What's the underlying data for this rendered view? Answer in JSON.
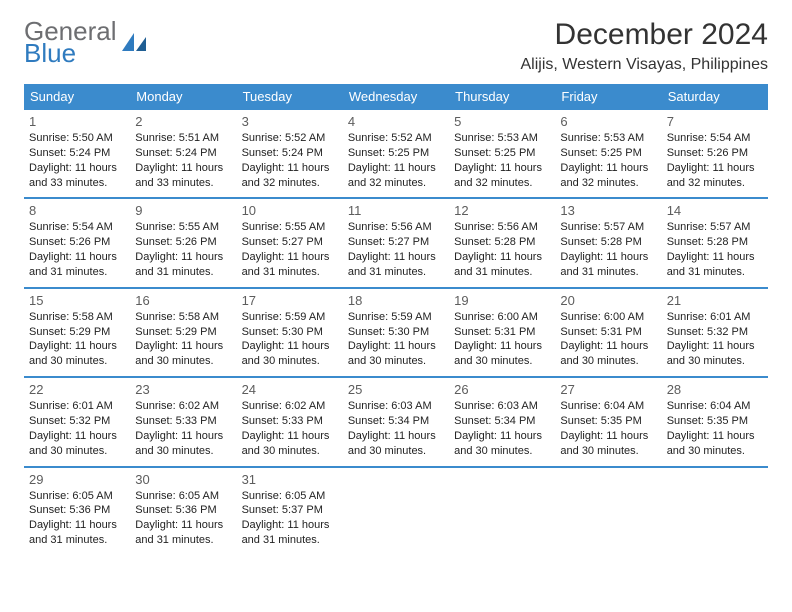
{
  "brand": {
    "word1": "General",
    "word2": "Blue"
  },
  "title": "December 2024",
  "subtitle": "Alijis, Western Visayas, Philippines",
  "colors": {
    "header_bg": "#3b8bcd",
    "header_fg": "#ffffff",
    "rule": "#3b8bcd",
    "brand_gray": "#6d6e71",
    "brand_blue": "#2f7bbf"
  },
  "day_headers": [
    "Sunday",
    "Monday",
    "Tuesday",
    "Wednesday",
    "Thursday",
    "Friday",
    "Saturday"
  ],
  "weeks": [
    [
      {
        "n": "1",
        "sunrise": "5:50 AM",
        "sunset": "5:24 PM",
        "day_h": "11",
        "day_m": "33"
      },
      {
        "n": "2",
        "sunrise": "5:51 AM",
        "sunset": "5:24 PM",
        "day_h": "11",
        "day_m": "33"
      },
      {
        "n": "3",
        "sunrise": "5:52 AM",
        "sunset": "5:24 PM",
        "day_h": "11",
        "day_m": "32"
      },
      {
        "n": "4",
        "sunrise": "5:52 AM",
        "sunset": "5:25 PM",
        "day_h": "11",
        "day_m": "32"
      },
      {
        "n": "5",
        "sunrise": "5:53 AM",
        "sunset": "5:25 PM",
        "day_h": "11",
        "day_m": "32"
      },
      {
        "n": "6",
        "sunrise": "5:53 AM",
        "sunset": "5:25 PM",
        "day_h": "11",
        "day_m": "32"
      },
      {
        "n": "7",
        "sunrise": "5:54 AM",
        "sunset": "5:26 PM",
        "day_h": "11",
        "day_m": "32"
      }
    ],
    [
      {
        "n": "8",
        "sunrise": "5:54 AM",
        "sunset": "5:26 PM",
        "day_h": "11",
        "day_m": "31"
      },
      {
        "n": "9",
        "sunrise": "5:55 AM",
        "sunset": "5:26 PM",
        "day_h": "11",
        "day_m": "31"
      },
      {
        "n": "10",
        "sunrise": "5:55 AM",
        "sunset": "5:27 PM",
        "day_h": "11",
        "day_m": "31"
      },
      {
        "n": "11",
        "sunrise": "5:56 AM",
        "sunset": "5:27 PM",
        "day_h": "11",
        "day_m": "31"
      },
      {
        "n": "12",
        "sunrise": "5:56 AM",
        "sunset": "5:28 PM",
        "day_h": "11",
        "day_m": "31"
      },
      {
        "n": "13",
        "sunrise": "5:57 AM",
        "sunset": "5:28 PM",
        "day_h": "11",
        "day_m": "31"
      },
      {
        "n": "14",
        "sunrise": "5:57 AM",
        "sunset": "5:28 PM",
        "day_h": "11",
        "day_m": "31"
      }
    ],
    [
      {
        "n": "15",
        "sunrise": "5:58 AM",
        "sunset": "5:29 PM",
        "day_h": "11",
        "day_m": "30"
      },
      {
        "n": "16",
        "sunrise": "5:58 AM",
        "sunset": "5:29 PM",
        "day_h": "11",
        "day_m": "30"
      },
      {
        "n": "17",
        "sunrise": "5:59 AM",
        "sunset": "5:30 PM",
        "day_h": "11",
        "day_m": "30"
      },
      {
        "n": "18",
        "sunrise": "5:59 AM",
        "sunset": "5:30 PM",
        "day_h": "11",
        "day_m": "30"
      },
      {
        "n": "19",
        "sunrise": "6:00 AM",
        "sunset": "5:31 PM",
        "day_h": "11",
        "day_m": "30"
      },
      {
        "n": "20",
        "sunrise": "6:00 AM",
        "sunset": "5:31 PM",
        "day_h": "11",
        "day_m": "30"
      },
      {
        "n": "21",
        "sunrise": "6:01 AM",
        "sunset": "5:32 PM",
        "day_h": "11",
        "day_m": "30"
      }
    ],
    [
      {
        "n": "22",
        "sunrise": "6:01 AM",
        "sunset": "5:32 PM",
        "day_h": "11",
        "day_m": "30"
      },
      {
        "n": "23",
        "sunrise": "6:02 AM",
        "sunset": "5:33 PM",
        "day_h": "11",
        "day_m": "30"
      },
      {
        "n": "24",
        "sunrise": "6:02 AM",
        "sunset": "5:33 PM",
        "day_h": "11",
        "day_m": "30"
      },
      {
        "n": "25",
        "sunrise": "6:03 AM",
        "sunset": "5:34 PM",
        "day_h": "11",
        "day_m": "30"
      },
      {
        "n": "26",
        "sunrise": "6:03 AM",
        "sunset": "5:34 PM",
        "day_h": "11",
        "day_m": "30"
      },
      {
        "n": "27",
        "sunrise": "6:04 AM",
        "sunset": "5:35 PM",
        "day_h": "11",
        "day_m": "30"
      },
      {
        "n": "28",
        "sunrise": "6:04 AM",
        "sunset": "5:35 PM",
        "day_h": "11",
        "day_m": "30"
      }
    ],
    [
      {
        "n": "29",
        "sunrise": "6:05 AM",
        "sunset": "5:36 PM",
        "day_h": "11",
        "day_m": "31"
      },
      {
        "n": "30",
        "sunrise": "6:05 AM",
        "sunset": "5:36 PM",
        "day_h": "11",
        "day_m": "31"
      },
      {
        "n": "31",
        "sunrise": "6:05 AM",
        "sunset": "5:37 PM",
        "day_h": "11",
        "day_m": "31"
      },
      null,
      null,
      null,
      null
    ]
  ],
  "labels": {
    "sunrise_prefix": "Sunrise: ",
    "sunset_prefix": "Sunset: ",
    "daylight_prefix": "Daylight: ",
    "hours_word": " hours",
    "and_word": "and ",
    "minutes_word": " minutes."
  }
}
